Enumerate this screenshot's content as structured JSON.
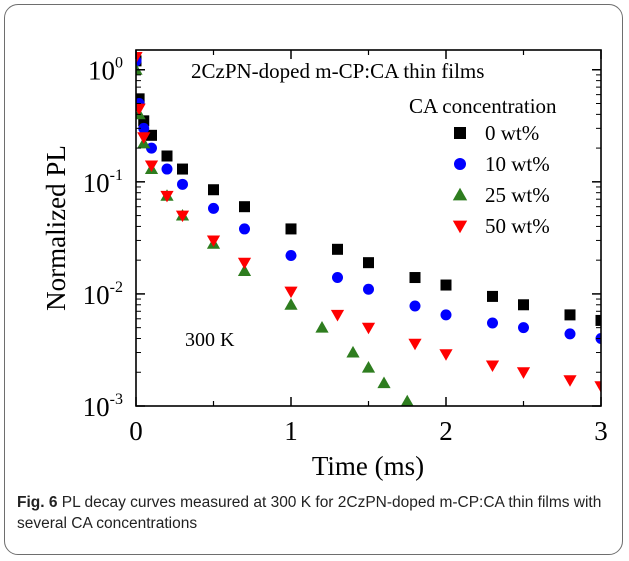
{
  "chart_data": {
    "type": "scatter",
    "title": "2CzPN-doped m-CP:CA thin films",
    "xlabel": "Time (ms)",
    "ylabel": "Normalized PL",
    "xlim": [
      0,
      3
    ],
    "ylim": [
      0.001,
      1.5
    ],
    "yscale": "log",
    "x_ticks": [
      "0",
      "1",
      "2",
      "3"
    ],
    "y_ticks": [
      {
        "value": 1,
        "base": "10",
        "exp": "0"
      },
      {
        "value": 0.1,
        "base": "10",
        "exp": "-1"
      },
      {
        "value": 0.01,
        "base": "10",
        "exp": "-2"
      },
      {
        "value": 0.001,
        "base": "10",
        "exp": "-3"
      }
    ],
    "legend_title": "CA concentration",
    "legend_position": "top-right",
    "annotation": "300 K",
    "grid": false,
    "series": [
      {
        "name": "0 wt%",
        "marker": "square",
        "color": "#000000",
        "x": [
          0,
          0.02,
          0.05,
          0.1,
          0.2,
          0.3,
          0.5,
          0.7,
          1.0,
          1.3,
          1.5,
          1.8,
          2.0,
          2.3,
          2.5,
          2.8,
          3.0
        ],
        "y": [
          1.2,
          0.55,
          0.35,
          0.26,
          0.17,
          0.13,
          0.085,
          0.06,
          0.038,
          0.025,
          0.019,
          0.014,
          0.012,
          0.0095,
          0.008,
          0.0065,
          0.0058
        ]
      },
      {
        "name": "10 wt%",
        "marker": "circle",
        "color": "#0000ff",
        "x": [
          0,
          0.02,
          0.05,
          0.1,
          0.2,
          0.3,
          0.5,
          0.7,
          1.0,
          1.3,
          1.5,
          1.8,
          2.0,
          2.3,
          2.5,
          2.8,
          3.0
        ],
        "y": [
          1.2,
          0.5,
          0.3,
          0.2,
          0.13,
          0.095,
          0.058,
          0.038,
          0.022,
          0.014,
          0.011,
          0.0078,
          0.0065,
          0.0055,
          0.005,
          0.0044,
          0.004
        ]
      },
      {
        "name": "25 wt%",
        "marker": "triangle-up",
        "color": "#2e7d1f",
        "x": [
          0,
          0.02,
          0.05,
          0.1,
          0.2,
          0.3,
          0.5,
          0.7,
          1.0,
          1.2,
          1.4,
          1.5,
          1.6,
          1.75
        ],
        "y": [
          1.0,
          0.4,
          0.22,
          0.13,
          0.075,
          0.05,
          0.028,
          0.016,
          0.008,
          0.005,
          0.003,
          0.0022,
          0.0016,
          0.0011
        ]
      },
      {
        "name": "50 wt%",
        "marker": "triangle-down",
        "color": "#ff0000",
        "x": [
          0,
          0.02,
          0.05,
          0.1,
          0.2,
          0.3,
          0.5,
          0.7,
          1.0,
          1.3,
          1.5,
          1.8,
          2.0,
          2.3,
          2.5,
          2.8,
          3.0
        ],
        "y": [
          1.3,
          0.45,
          0.25,
          0.14,
          0.075,
          0.05,
          0.03,
          0.019,
          0.0105,
          0.0065,
          0.005,
          0.0036,
          0.0029,
          0.0023,
          0.002,
          0.0017,
          0.0015
        ]
      }
    ]
  },
  "caption": {
    "label": "Fig. 6",
    "text": " PL decay curves measured at 300 K for 2CzPN-doped m-CP:CA thin films with several CA concentrations"
  }
}
